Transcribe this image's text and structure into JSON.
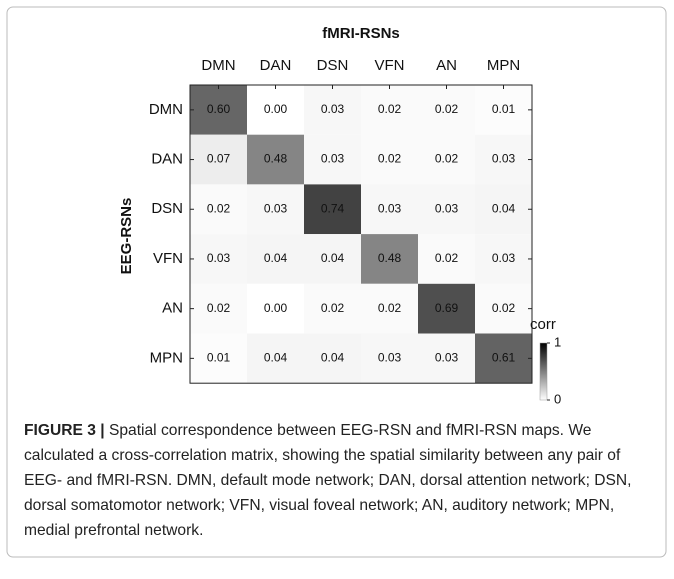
{
  "chart_data": {
    "type": "heatmap",
    "title": "fMRI-RSNs",
    "y_label": "EEG-RSNs",
    "x_categories": [
      "DMN",
      "DAN",
      "DSN",
      "VFN",
      "AN",
      "MPN"
    ],
    "y_categories": [
      "DMN",
      "DAN",
      "DSN",
      "VFN",
      "AN",
      "MPN"
    ],
    "values": [
      [
        0.6,
        0,
        0.03,
        0.02,
        0.02,
        0.01
      ],
      [
        0.07,
        0.48,
        0.03,
        0.02,
        0.02,
        0.03
      ],
      [
        0.02,
        0.03,
        0.74,
        0.03,
        0.03,
        0.04
      ],
      [
        0.03,
        0.04,
        0.04,
        0.48,
        0.02,
        0.03
      ],
      [
        0.02,
        0,
        0.02,
        0.02,
        0.69,
        0.02
      ],
      [
        0.01,
        0.04,
        0.04,
        0.03,
        0.03,
        0.61
      ]
    ],
    "value_labels": [
      [
        "0.60",
        "0.00",
        "0.03",
        "0.02",
        "0.02",
        "0.01"
      ],
      [
        "0.07",
        "0.48",
        "0.03",
        "0.02",
        "0.02",
        "0.03"
      ],
      [
        "0.02",
        "0.03",
        "0.74",
        "0.03",
        "0.03",
        "0.04"
      ],
      [
        "0.03",
        "0.04",
        "0.04",
        "0.48",
        "0.02",
        "0.03"
      ],
      [
        "0.02",
        "0.00",
        "0.02",
        "0.02",
        "0.69",
        "0.02"
      ],
      [
        "0.01",
        "0.04",
        "0.04",
        "0.03",
        "0.03",
        "0.61"
      ]
    ],
    "colormap": [
      "#ffffff",
      "#000000"
    ],
    "zlim": [
      0,
      1
    ],
    "colorbar_label": "corr",
    "colorbar_ticks": [
      0,
      1
    ],
    "caption": {
      "label": "FIGURE 3 |",
      "text": "Spatial correspondence between EEG-RSN and fMRI-RSN maps. We calculated a cross-correlation matrix, showing the spatial similarity between any pair of EEG- and fMRI-RSN. DMN, default mode network; DAN, dorsal attention network; DSN, dorsal somatomotor network; VFN, visual foveal network; AN, auditory network; MPN, medial prefrontal network."
    }
  }
}
